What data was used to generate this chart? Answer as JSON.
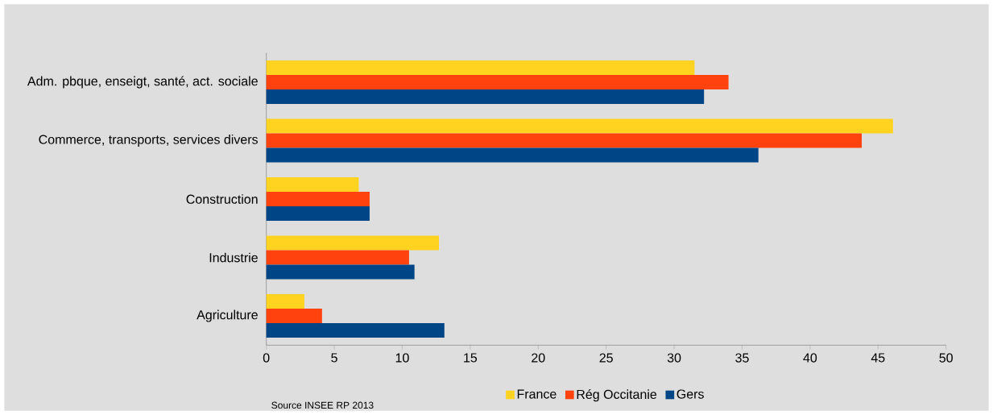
{
  "chart_data": {
    "type": "bar",
    "orientation": "horizontal",
    "categories": [
      "Adm. pbque, enseigt, santé, act. sociale",
      "Commerce, transports, services divers",
      "Construction",
      "Industrie",
      "Agriculture"
    ],
    "series": [
      {
        "name": "France",
        "color": "#ffd320",
        "values": [
          31.5,
          46.1,
          6.8,
          12.7,
          2.8
        ]
      },
      {
        "name": "Rég Occitanie",
        "color": "#ff420e",
        "values": [
          34.0,
          43.8,
          7.6,
          10.5,
          4.1
        ]
      },
      {
        "name": "Gers",
        "color": "#004586",
        "values": [
          32.2,
          36.2,
          7.6,
          10.9,
          13.1
        ]
      }
    ],
    "xlim": [
      0,
      50
    ],
    "xticks": [
      0,
      5,
      10,
      15,
      20,
      25,
      30,
      35,
      40,
      45,
      50
    ],
    "legend": "bottom",
    "annotations": [
      "Source INSEE  RP 2013"
    ]
  }
}
